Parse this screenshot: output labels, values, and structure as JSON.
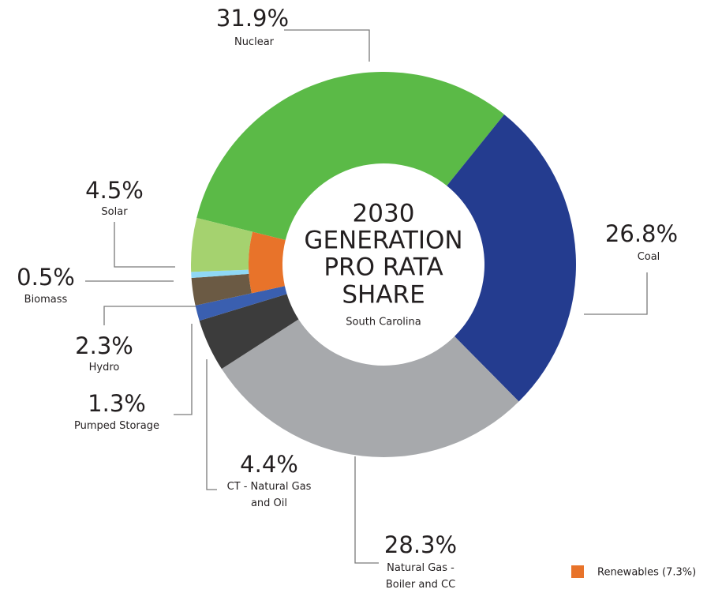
{
  "chart_data": {
    "type": "donut",
    "title": [
      "2030",
      "GENERATION",
      "PRO RATA",
      "SHARE"
    ],
    "subtitle": "South Carolina",
    "categories": [
      "Nuclear",
      "Coal",
      "Natural Gas - Boiler and CC",
      "CT - Natural Gas and Oil",
      "Pumped Storage",
      "Hydro",
      "Biomass",
      "Solar"
    ],
    "values": [
      31.9,
      26.8,
      28.3,
      4.4,
      1.3,
      2.3,
      0.5,
      4.5
    ],
    "value_labels": [
      "31.9%",
      "26.8%",
      "28.3%",
      "4.4%",
      "1.3%",
      "2.3%",
      "0.5%",
      "4.5%"
    ],
    "colors": [
      "#5bba47",
      "#243c8f",
      "#a7a9ac",
      "#3c3c3c",
      "#3a5fb0",
      "#6b5a44",
      "#8fd8f5",
      "#a5d26f"
    ],
    "inner": {
      "name": "Renewables (7.3%)",
      "value": 7.3,
      "color": "#e8732a",
      "categories": [
        "Hydro",
        "Biomass",
        "Solar"
      ]
    }
  }
}
